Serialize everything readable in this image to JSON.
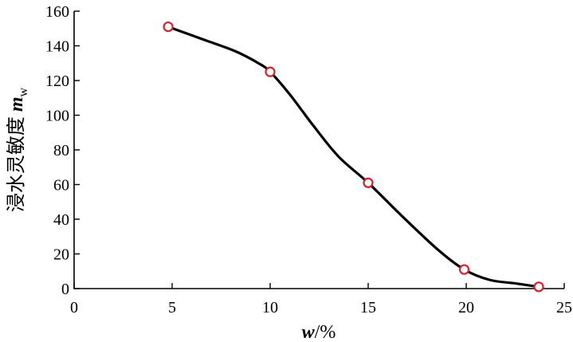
{
  "chart_data": {
    "type": "line",
    "title": "",
    "xlabel": "w/%",
    "ylabel": "浸水灵敏度 m_w",
    "xlabel_parts": {
      "var": "w",
      "suffix": "/%"
    },
    "ylabel_parts": {
      "text": "浸水灵敏度 ",
      "var": "m",
      "sub": "w"
    },
    "xlim": [
      0,
      25
    ],
    "ylim": [
      0,
      160
    ],
    "xticks": [
      0,
      5,
      10,
      15,
      20,
      25
    ],
    "yticks": [
      0,
      20,
      40,
      60,
      80,
      100,
      120,
      140,
      160
    ],
    "grid": false,
    "series": [
      {
        "x": [
          4.8,
          10.0,
          15.0,
          19.9,
          23.7
        ],
        "y": [
          151,
          125,
          61,
          11,
          1
        ]
      }
    ],
    "curve": {
      "x": [
        4.8,
        6.5,
        8.2,
        9.4,
        10.0,
        11.0,
        12.2,
        13.5,
        15.0,
        16.8,
        18.6,
        19.9,
        21.2,
        22.5,
        23.7
      ],
      "y": [
        151,
        144,
        137,
        130,
        125,
        112,
        94,
        76,
        61,
        41,
        22,
        11,
        5,
        3,
        1
      ]
    },
    "colors": {
      "line": "#000000",
      "marker": "#d9202b"
    }
  }
}
